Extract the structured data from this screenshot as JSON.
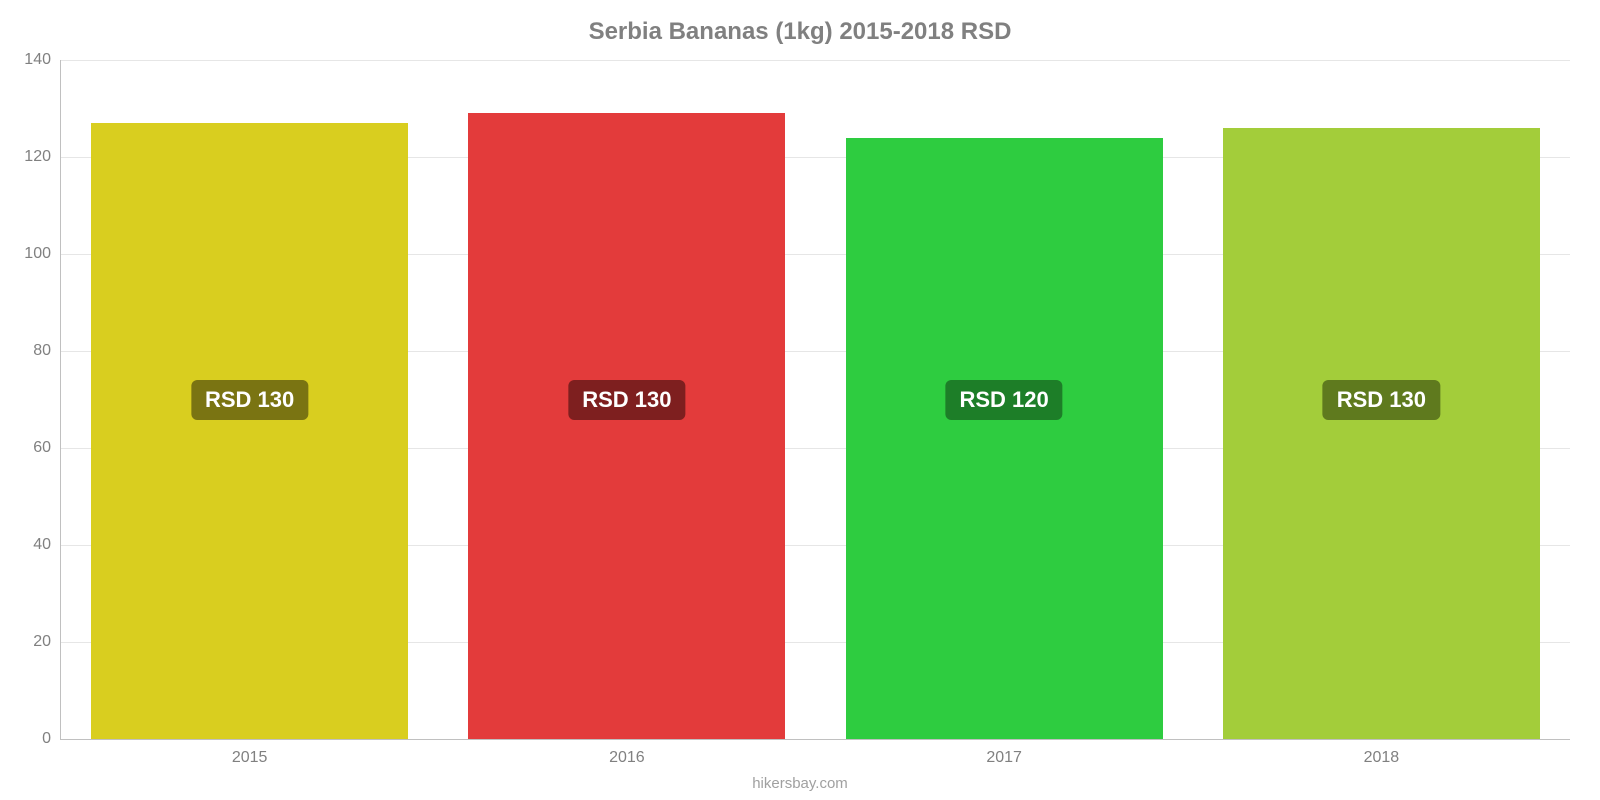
{
  "chart": {
    "type": "bar",
    "title": "Serbia Bananas (1kg) 2015-2018 RSD",
    "title_fontsize": 24,
    "title_color": "#808080",
    "background_color": "#ffffff",
    "grid_color": "#e6e6e6",
    "axis_color": "#c0c0c0",
    "tick_label_color": "#808080",
    "tick_fontsize": 16,
    "ylim_min": 0,
    "ylim_max": 140,
    "ytick_step": 20,
    "yticks": [
      {
        "value": 0,
        "label": "0"
      },
      {
        "value": 20,
        "label": "20"
      },
      {
        "value": 40,
        "label": "40"
      },
      {
        "value": 60,
        "label": "60"
      },
      {
        "value": 80,
        "label": "80"
      },
      {
        "value": 100,
        "label": "100"
      },
      {
        "value": 120,
        "label": "120"
      },
      {
        "value": 140,
        "label": "140"
      }
    ],
    "bar_width_pct": 84,
    "badge_fontsize": 22,
    "badge_text_color": "#ffffff",
    "badge_y_value": 70,
    "bars": [
      {
        "category": "2015",
        "value": 127,
        "display_label": "RSD 130",
        "color": "#d9ce1f",
        "badge_bg": "#7a7412"
      },
      {
        "category": "2016",
        "value": 129,
        "display_label": "RSD 130",
        "color": "#e33b3b",
        "badge_bg": "#7e1f1f"
      },
      {
        "category": "2017",
        "value": 124,
        "display_label": "RSD 120",
        "color": "#2ecc40",
        "badge_bg": "#1d7e28"
      },
      {
        "category": "2018",
        "value": 126,
        "display_label": "RSD 130",
        "color": "#a3cd3a",
        "badge_bg": "#5f7a1e"
      }
    ]
  },
  "attribution": {
    "text": "hikersbay.com",
    "color": "#a0a0a0",
    "fontsize": 15
  }
}
